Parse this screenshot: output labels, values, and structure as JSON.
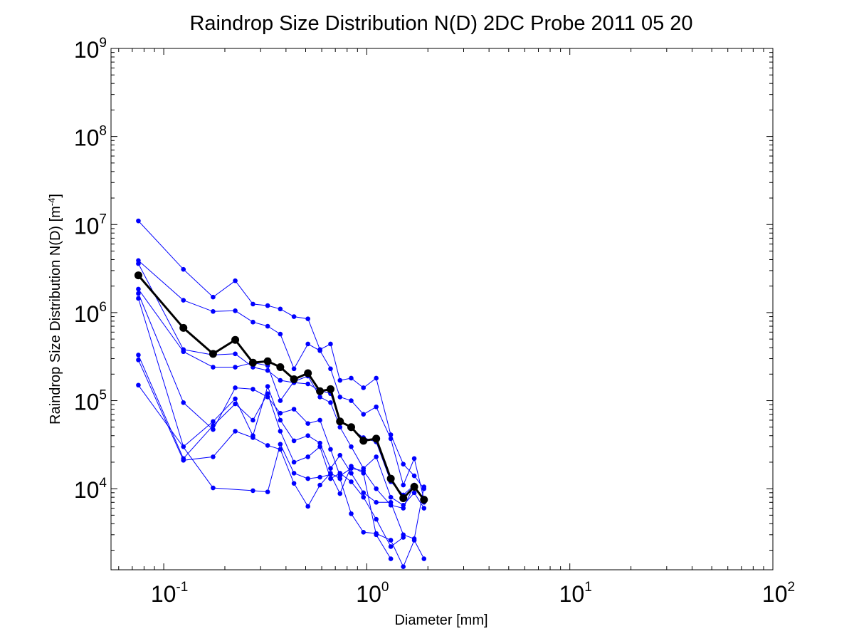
{
  "chart_data": {
    "type": "line",
    "title": "Raindrop Size Distribution N(D) 2DC Probe 2011 05 20",
    "xlabel": "Diameter [mm]",
    "ylabel": {
      "base": "Raindrop Size Distribution N(D) [m",
      "exp": "-4",
      "close": "]"
    },
    "x_scale": "log",
    "y_scale": "log",
    "xlim": [
      0.055,
      100
    ],
    "ylim": [
      1200,
      1000000000
    ],
    "grid": false,
    "legend": "none",
    "x_ticks": [
      {
        "base": "10",
        "exp": "-1",
        "value": 0.1
      },
      {
        "base": "10",
        "exp": "0",
        "value": 1
      },
      {
        "base": "10",
        "exp": "1",
        "value": 10
      },
      {
        "base": "10",
        "exp": "2",
        "value": 100
      }
    ],
    "y_ticks": [
      {
        "base": "10",
        "exp": "4",
        "value": 10000
      },
      {
        "base": "10",
        "exp": "5",
        "value": 100000
      },
      {
        "base": "10",
        "exp": "6",
        "value": 1000000
      },
      {
        "base": "10",
        "exp": "7",
        "value": 10000000
      },
      {
        "base": "10",
        "exp": "8",
        "value": 100000000
      },
      {
        "base": "10",
        "exp": "9",
        "value": 1000000000
      }
    ],
    "colors": {
      "series": "#0000ff",
      "mean": "#000000"
    },
    "series": [
      {
        "points": [
          [
            0.075,
            11000000
          ],
          [
            0.125,
            3100000
          ],
          [
            0.175,
            1500000
          ],
          [
            0.225,
            2300000
          ],
          [
            0.275,
            1250000
          ],
          [
            0.325,
            1200000
          ],
          [
            0.375,
            1100000
          ],
          [
            0.438,
            900000
          ],
          [
            0.513,
            850000
          ],
          [
            0.588,
            380000
          ],
          [
            0.663,
            440000
          ],
          [
            0.738,
            170000
          ],
          [
            0.838,
            180000
          ],
          [
            0.963,
            140000
          ],
          [
            1.113,
            180000
          ],
          [
            1.313,
            41000
          ],
          [
            1.513,
            19000
          ],
          [
            1.713,
            14000
          ],
          [
            1.913,
            10000
          ]
        ]
      },
      {
        "points": [
          [
            0.075,
            3900000
          ],
          [
            0.125,
            1380000
          ],
          [
            0.175,
            1030000
          ],
          [
            0.225,
            1050000
          ],
          [
            0.275,
            780000
          ],
          [
            0.325,
            700000
          ],
          [
            0.375,
            570000
          ],
          [
            0.438,
            230000
          ],
          [
            0.513,
            440000
          ],
          [
            0.588,
            370000
          ],
          [
            0.663,
            230000
          ],
          [
            0.738,
            110000
          ],
          [
            0.838,
            100000
          ],
          [
            0.963,
            70000
          ],
          [
            1.113,
            85000
          ],
          [
            1.313,
            37000
          ],
          [
            1.513,
            11000
          ],
          [
            1.713,
            22000
          ],
          [
            1.913,
            7500
          ]
        ]
      },
      {
        "points": [
          [
            0.075,
            3600000
          ],
          [
            0.125,
            380000
          ],
          [
            0.175,
            330000
          ],
          [
            0.225,
            340000
          ],
          [
            0.275,
            240000
          ],
          [
            0.325,
            220000
          ],
          [
            0.375,
            170000
          ],
          [
            0.438,
            160000
          ],
          [
            0.513,
            155000
          ],
          [
            0.588,
            130000
          ],
          [
            0.663,
            120000
          ],
          [
            0.738,
            60000
          ],
          [
            0.838,
            48000
          ],
          [
            0.963,
            38000
          ],
          [
            1.113,
            34000
          ],
          [
            1.313,
            12000
          ],
          [
            1.513,
            8500
          ],
          [
            1.713,
            11000
          ],
          [
            1.913,
            7000
          ]
        ]
      },
      {
        "points": [
          [
            0.075,
            1850000
          ],
          [
            0.125,
            360000
          ],
          [
            0.175,
            240000
          ],
          [
            0.225,
            240000
          ],
          [
            0.275,
            270000
          ],
          [
            0.325,
            250000
          ],
          [
            0.375,
            100000
          ],
          [
            0.438,
            165000
          ],
          [
            0.513,
            190000
          ],
          [
            0.588,
            110000
          ],
          [
            0.663,
            95000
          ],
          [
            0.738,
            50000
          ],
          [
            0.838,
            30000
          ],
          [
            0.963,
            17000
          ],
          [
            1.113,
            23000
          ],
          [
            1.313,
            8000
          ],
          [
            1.513,
            6500
          ],
          [
            1.713,
            9000
          ],
          [
            1.913,
            6000
          ]
        ]
      },
      {
        "points": [
          [
            0.075,
            1650000
          ],
          [
            0.125,
            95000
          ],
          [
            0.175,
            47000
          ],
          [
            0.225,
            140000
          ],
          [
            0.275,
            135000
          ],
          [
            0.325,
            110000
          ],
          [
            0.375,
            72000
          ],
          [
            0.438,
            80000
          ],
          [
            0.513,
            55000
          ],
          [
            0.588,
            60000
          ],
          [
            0.663,
            28000
          ],
          [
            0.738,
            14000
          ],
          [
            0.838,
            17000
          ],
          [
            0.963,
            16000
          ],
          [
            1.113,
            10000
          ],
          [
            1.313,
            6500
          ],
          [
            1.513,
            6000
          ],
          [
            1.713,
            11000
          ]
        ]
      },
      {
        "points": [
          [
            0.075,
            1450000
          ],
          [
            0.125,
            30000
          ],
          [
            0.175,
            58000
          ],
          [
            0.225,
            105000
          ],
          [
            0.275,
            40000
          ],
          [
            0.325,
            145000
          ],
          [
            0.375,
            60000
          ],
          [
            0.438,
            35000
          ],
          [
            0.513,
            40000
          ],
          [
            0.588,
            33000
          ],
          [
            0.663,
            17000
          ],
          [
            0.738,
            24000
          ],
          [
            0.838,
            15000
          ],
          [
            0.963,
            9000
          ],
          [
            1.113,
            7000
          ],
          [
            1.313,
            7000
          ],
          [
            1.513,
            3000
          ],
          [
            1.713,
            2700
          ],
          [
            1.913,
            10500
          ]
        ]
      },
      {
        "points": [
          [
            0.075,
            330000
          ],
          [
            0.125,
            22000
          ],
          [
            0.175,
            52000
          ],
          [
            0.225,
            92000
          ],
          [
            0.275,
            60000
          ],
          [
            0.325,
            120000
          ],
          [
            0.375,
            45000
          ],
          [
            0.438,
            20000
          ],
          [
            0.513,
            23000
          ],
          [
            0.588,
            30000
          ],
          [
            0.663,
            13000
          ],
          [
            0.738,
            15000
          ],
          [
            0.838,
            12000
          ],
          [
            0.963,
            8000
          ],
          [
            1.113,
            4500
          ],
          [
            1.313,
            2200
          ],
          [
            1.513,
            2800
          ]
        ]
      },
      {
        "points": [
          [
            0.075,
            290000
          ],
          [
            0.125,
            21000
          ],
          [
            0.175,
            23000
          ],
          [
            0.225,
            45000
          ],
          [
            0.275,
            38000
          ],
          [
            0.325,
            31000
          ],
          [
            0.375,
            28000
          ],
          [
            0.438,
            11500
          ],
          [
            0.513,
            6300
          ],
          [
            0.588,
            11000
          ],
          [
            0.663,
            15000
          ],
          [
            0.738,
            13000
          ],
          [
            0.838,
            5200
          ],
          [
            0.963,
            3200
          ],
          [
            1.113,
            3100
          ],
          [
            1.313,
            2600
          ],
          [
            1.513,
            1300
          ],
          [
            1.713,
            2600
          ],
          [
            1.913,
            1600
          ]
        ]
      },
      {
        "points": [
          [
            0.075,
            150000
          ],
          [
            0.175,
            10200
          ],
          [
            0.275,
            9500
          ],
          [
            0.325,
            9200
          ],
          [
            0.375,
            32000
          ],
          [
            0.438,
            15000
          ],
          [
            0.513,
            13000
          ],
          [
            0.588,
            13500
          ],
          [
            0.663,
            14500
          ],
          [
            0.738,
            8800
          ],
          [
            0.838,
            18000
          ],
          [
            0.963,
            15000
          ],
          [
            1.113,
            3000
          ],
          [
            1.313,
            1600
          ]
        ]
      }
    ],
    "mean_series": {
      "points": [
        [
          0.075,
          2650000
        ],
        [
          0.125,
          670000
        ],
        [
          0.175,
          340000
        ],
        [
          0.225,
          490000
        ],
        [
          0.275,
          270000
        ],
        [
          0.325,
          280000
        ],
        [
          0.375,
          240000
        ],
        [
          0.438,
          175000
        ],
        [
          0.513,
          205000
        ],
        [
          0.588,
          128000
        ],
        [
          0.663,
          135000
        ],
        [
          0.738,
          58000
        ],
        [
          0.838,
          50000
        ],
        [
          0.963,
          35000
        ],
        [
          1.113,
          37000
        ],
        [
          1.313,
          13000
        ],
        [
          1.513,
          7800
        ],
        [
          1.713,
          10500
        ],
        [
          1.913,
          7500
        ]
      ]
    }
  }
}
